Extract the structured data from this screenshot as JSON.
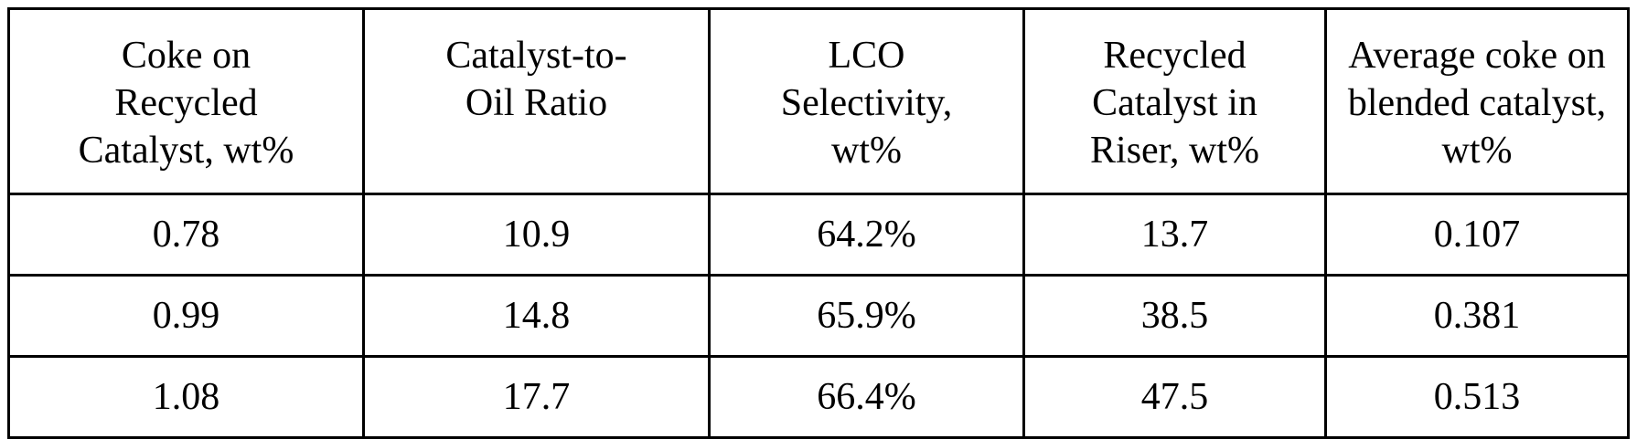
{
  "table": {
    "headers": [
      "Coke on\nRecycled\nCatalyst, wt%",
      "Catalyst-to-\nOil Ratio",
      "LCO\nSelectivity,\nwt%",
      "Recycled\nCatalyst in\nRiser, wt%",
      "Average coke on\nblended catalyst,\nwt%"
    ],
    "rows": [
      [
        "0.78",
        "10.9",
        "64.2%",
        "13.7",
        "0.107"
      ],
      [
        "0.99",
        "14.8",
        "65.9%",
        "38.5",
        "0.381"
      ],
      [
        "1.08",
        "17.7",
        "66.4%",
        "47.5",
        "0.513"
      ]
    ]
  }
}
